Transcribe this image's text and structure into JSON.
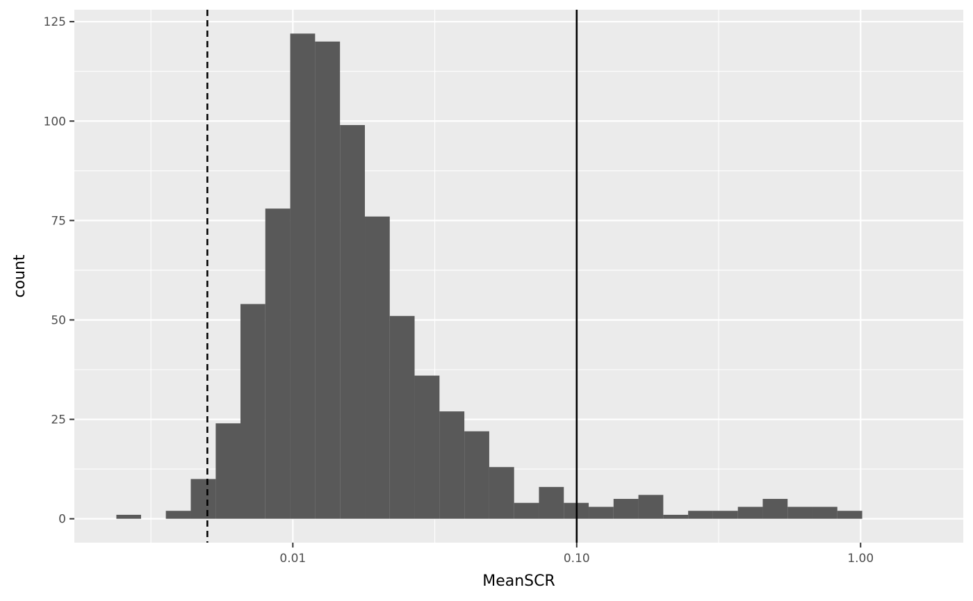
{
  "chart_data": {
    "type": "bar",
    "subtype": "histogram",
    "title": "",
    "xlabel": "MeanSCR",
    "ylabel": "count",
    "x_scale": "log10",
    "xlim": [
      0.0017,
      2.3
    ],
    "ylim": [
      -6,
      128
    ],
    "x_ticks": [
      {
        "value": 0.01,
        "label": "0.01"
      },
      {
        "value": 0.1,
        "label": "0.10"
      },
      {
        "value": 1,
        "label": "1.00"
      }
    ],
    "y_ticks": [
      {
        "value": 0,
        "label": "0"
      },
      {
        "value": 25,
        "label": "25"
      },
      {
        "value": 50,
        "label": "50"
      },
      {
        "value": 75,
        "label": "75"
      },
      {
        "value": 100,
        "label": "100"
      },
      {
        "value": 125,
        "label": "125"
      }
    ],
    "grid": true,
    "bar_color": "#595959",
    "panel_background": "#ebebeb",
    "bins": [
      {
        "x_start": 0.00239,
        "x_end": 0.00292,
        "count": 1
      },
      {
        "x_start": 0.00292,
        "x_end": 0.00357,
        "count": 0
      },
      {
        "x_start": 0.00357,
        "x_end": 0.00437,
        "count": 2
      },
      {
        "x_start": 0.00437,
        "x_end": 0.00535,
        "count": 10
      },
      {
        "x_start": 0.00535,
        "x_end": 0.00654,
        "count": 24
      },
      {
        "x_start": 0.00654,
        "x_end": 0.008,
        "count": 54
      },
      {
        "x_start": 0.008,
        "x_end": 0.00979,
        "count": 78
      },
      {
        "x_start": 0.00979,
        "x_end": 0.01198,
        "count": 122
      },
      {
        "x_start": 0.01198,
        "x_end": 0.01466,
        "count": 120
      },
      {
        "x_start": 0.01466,
        "x_end": 0.01794,
        "count": 99
      },
      {
        "x_start": 0.01794,
        "x_end": 0.02195,
        "count": 76
      },
      {
        "x_start": 0.02195,
        "x_end": 0.02685,
        "count": 51
      },
      {
        "x_start": 0.02685,
        "x_end": 0.03286,
        "count": 36
      },
      {
        "x_start": 0.03286,
        "x_end": 0.0402,
        "count": 27
      },
      {
        "x_start": 0.0402,
        "x_end": 0.04919,
        "count": 22
      },
      {
        "x_start": 0.04919,
        "x_end": 0.06018,
        "count": 13
      },
      {
        "x_start": 0.06018,
        "x_end": 0.07362,
        "count": 4
      },
      {
        "x_start": 0.07362,
        "x_end": 0.09008,
        "count": 8
      },
      {
        "x_start": 0.09008,
        "x_end": 0.11021,
        "count": 4
      },
      {
        "x_start": 0.11021,
        "x_end": 0.13483,
        "count": 3
      },
      {
        "x_start": 0.13483,
        "x_end": 0.16496,
        "count": 5
      },
      {
        "x_start": 0.16496,
        "x_end": 0.20183,
        "count": 6
      },
      {
        "x_start": 0.20183,
        "x_end": 0.24692,
        "count": 1
      },
      {
        "x_start": 0.24692,
        "x_end": 0.3021,
        "count": 2
      },
      {
        "x_start": 0.3021,
        "x_end": 0.36961,
        "count": 2
      },
      {
        "x_start": 0.36961,
        "x_end": 0.4522,
        "count": 3
      },
      {
        "x_start": 0.4522,
        "x_end": 0.55325,
        "count": 5
      },
      {
        "x_start": 0.55325,
        "x_end": 0.67688,
        "count": 3
      },
      {
        "x_start": 0.67688,
        "x_end": 0.82814,
        "count": 3
      },
      {
        "x_start": 0.82814,
        "x_end": 1.0132,
        "count": 2
      }
    ],
    "reference_lines": [
      {
        "orientation": "vertical",
        "x": 0.005,
        "style": "dashed",
        "color": "#000000"
      },
      {
        "orientation": "vertical",
        "x": 0.1,
        "style": "solid",
        "color": "#000000"
      }
    ]
  }
}
